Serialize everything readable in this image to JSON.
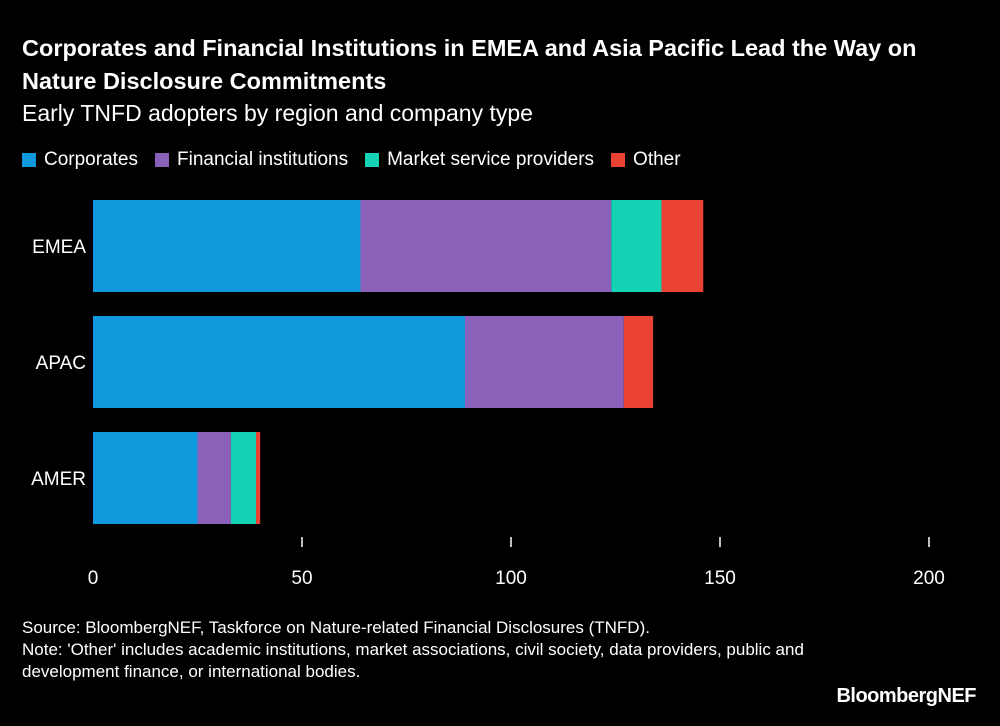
{
  "title": "Corporates and Financial Institutions in EMEA and Asia Pacific Lead the Way on Nature Disclosure Commitments",
  "subtitle": "Early TNFD adopters by region and company type",
  "legend": [
    {
      "label": "Corporates",
      "color": "#1099dc"
    },
    {
      "label": "Financial institutions",
      "color": "#8a60b8"
    },
    {
      "label": "Market service providers",
      "color": "#14d2b4"
    },
    {
      "label": "Other",
      "color": "#ea4335"
    }
  ],
  "source_line1": "Source: BloombergNEF, Taskforce on Nature-related Financial Disclosures (TNFD).",
  "source_line2": "Note: 'Other' includes academic institutions, market associations, civil society, data providers, public and development finance, or international bodies.",
  "brand": "BloombergNEF",
  "chart_data": {
    "type": "bar",
    "orientation": "horizontal",
    "stacked": true,
    "title": "Corporates and Financial Institutions in EMEA and Asia Pacific Lead the Way on Nature Disclosure Commitments",
    "subtitle": "Early TNFD adopters by region and company type",
    "categories": [
      "EMEA",
      "APAC",
      "AMER"
    ],
    "series": [
      {
        "name": "Corporates",
        "color": "#1099dc",
        "values": [
          64,
          89,
          25
        ]
      },
      {
        "name": "Financial institutions",
        "color": "#8a60b8",
        "values": [
          60,
          38,
          8
        ]
      },
      {
        "name": "Market service providers",
        "color": "#14d2b4",
        "values": [
          12,
          0,
          6
        ]
      },
      {
        "name": "Other",
        "color": "#ea4335",
        "values": [
          10,
          7,
          1
        ]
      }
    ],
    "xlim": [
      0,
      200
    ],
    "xticks": [
      0,
      50,
      100,
      150,
      200
    ],
    "xlabel": "",
    "ylabel": "",
    "grid": false,
    "legend_position": "top-left"
  }
}
